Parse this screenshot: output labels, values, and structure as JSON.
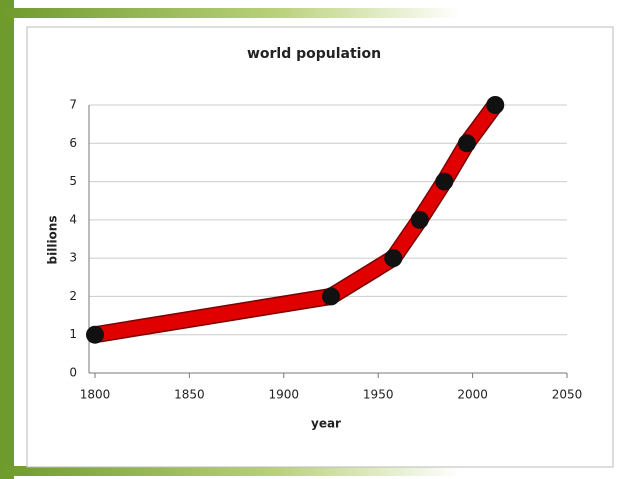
{
  "chart_data": {
    "type": "line",
    "title": "world population",
    "x_label": "year",
    "y_label": "billions",
    "x": [
      1800,
      1925,
      1958,
      1972,
      1985,
      1997,
      2012
    ],
    "values": [
      1,
      2,
      3,
      4,
      5,
      6,
      7
    ],
    "color": "#e00000",
    "marker_color": "#111111",
    "xlim": [
      1800,
      2050
    ],
    "xticks": [
      1800,
      1850,
      1900,
      1950,
      2000,
      2050
    ],
    "ylim": [
      0,
      7
    ],
    "yticks": [
      0,
      1,
      2,
      3,
      4,
      5,
      6,
      7
    ],
    "grid": true
  }
}
